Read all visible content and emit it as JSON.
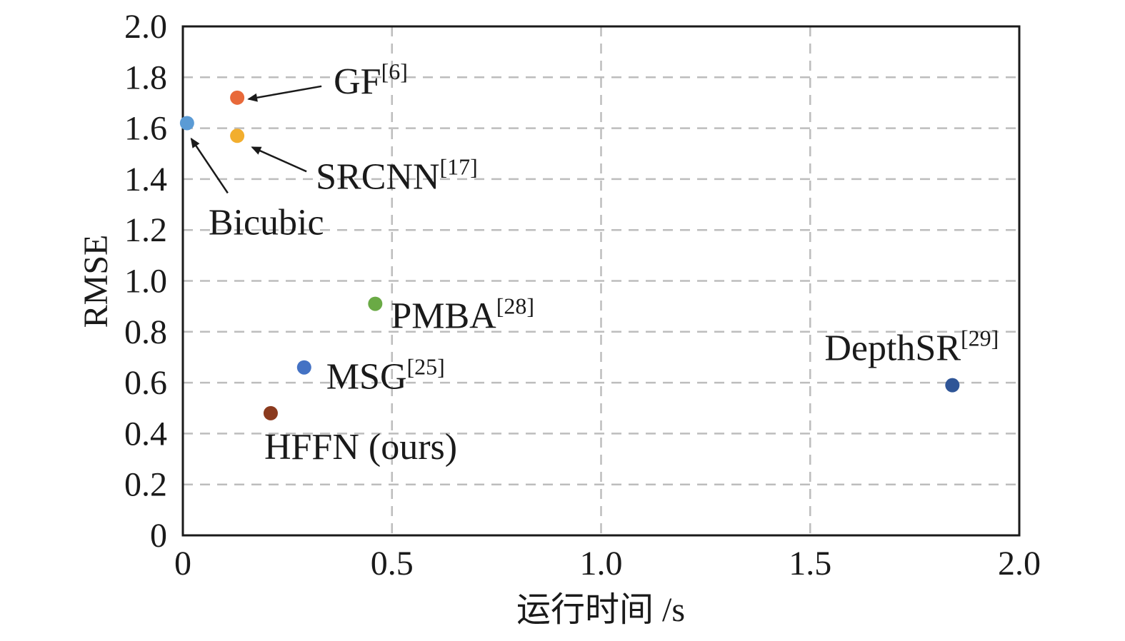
{
  "chart_data": {
    "type": "scatter",
    "title": "",
    "xlabel": "运行时间 /s",
    "ylabel": "RMSE",
    "xlim": [
      0,
      2.0
    ],
    "ylim": [
      0,
      2.0
    ],
    "xticks": [
      "0",
      "0.5",
      "1.0",
      "1.5",
      "2.0"
    ],
    "yticks": [
      "0",
      "0.2",
      "0.4",
      "0.6",
      "0.8",
      "1.0",
      "1.2",
      "1.4",
      "1.6",
      "1.8",
      "2.0"
    ],
    "grid": true,
    "points": [
      {
        "label": "GF",
        "ref": "[6]",
        "x": 0.13,
        "y": 1.72,
        "color": "#e8693a",
        "arrow": true
      },
      {
        "label": "Bicubic",
        "ref": "",
        "x": 0.01,
        "y": 1.62,
        "color": "#5b9bd5",
        "arrow": true
      },
      {
        "label": "SRCNN",
        "ref": "[17]",
        "x": 0.13,
        "y": 1.57,
        "color": "#f2ae2e",
        "arrow": true
      },
      {
        "label": "PMBA",
        "ref": "[28]",
        "x": 0.46,
        "y": 0.91,
        "color": "#6aaa45",
        "arrow": false
      },
      {
        "label": "MSG",
        "ref": "[25]",
        "x": 0.29,
        "y": 0.66,
        "color": "#4472c4",
        "arrow": false
      },
      {
        "label": "HFFN (ours)",
        "ref": "",
        "x": 0.21,
        "y": 0.48,
        "color": "#8b3a1e",
        "arrow": false
      },
      {
        "label": "DepthSR",
        "ref": "[29]",
        "x": 1.84,
        "y": 0.59,
        "color": "#2f5597",
        "arrow": false
      }
    ]
  }
}
